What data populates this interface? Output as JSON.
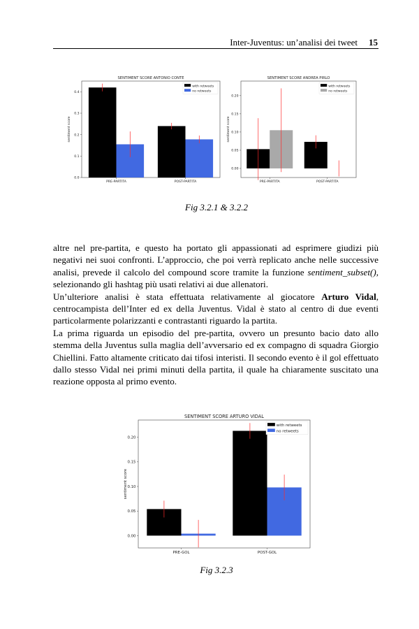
{
  "header": {
    "title": "Inter-Juventus: un’analisi dei tweet",
    "page_number": "15"
  },
  "captions": {
    "fig1": "Fig 3.2.1 & 3.2.2",
    "fig2": "Fig 3.2.3"
  },
  "paragraphs": [
    {
      "p1": "altre nel pre-partita, e questo ha portato gli appassionati ad esprimere giudizi più negativi nei suoi confronti. L’approccio, che poi verrà replicato anche nelle successive analisi, prevede il calcolo del compound score tramite la funzione ",
      "em": "sentiment_subset()",
      "p2": ", selezionando gli hashtag più usati relativi ai due allenatori."
    },
    {
      "p1": "Un’ulteriore analisi è stata effettuata relativamente al giocatore ",
      "strong": "Arturo Vidal",
      "p2": ", centrocampista dell’Inter ed ex della Juventus. Vidal è stato al centro di due eventi particolarmente polarizzanti e contrastanti riguardo la partita."
    },
    {
      "p1": "La prima riguarda un episodio del pre-partita, ovvero un presunto bacio dato allo stemma della Juventus sulla maglia dell’avversario ed ex compagno di squadra Giorgio Chiellini. Fatto altamente criticato dai tifosi interisti. Il secondo evento è il gol effettuato dallo stesso Vidal nei primi minuti della partita, il quale ha chiaramente suscitato una reazione opposta al primo evento."
    }
  ],
  "chart_data": [
    {
      "type": "bar",
      "title": "SENTIMENT SCORE ANTONIO CONTE",
      "ylabel": "sentiment score",
      "xlabel": "",
      "categories": [
        "PRE-PARTITA",
        "POST-PARTITA"
      ],
      "ylim": [
        0,
        0.45
      ],
      "yticks": [
        "0.0",
        "0.1",
        "0.2",
        "0.3",
        "0.4"
      ],
      "yticks_values": [
        0,
        0.1,
        0.2,
        0.3,
        0.4
      ],
      "legend_position": "top-right",
      "series": [
        {
          "name": "with retweets",
          "color": "#000000",
          "values": [
            0.42,
            0.24
          ],
          "errors": [
            0.018,
            0.015
          ]
        },
        {
          "name": "no retweets",
          "color": "#4169e1",
          "values": [
            0.155,
            0.178
          ],
          "errors": [
            0.06,
            0.018
          ]
        }
      ]
    },
    {
      "type": "bar",
      "title": "SENTIMENT SCORE ANDREA PIRLO",
      "ylabel": "sentiment score",
      "xlabel": "",
      "categories": [
        "PRE-PARTITA",
        "POST-PARTITA"
      ],
      "ylim": [
        -0.025,
        0.24
      ],
      "yticks": [
        "0.00",
        "0.05",
        "0.10",
        "0.15",
        "0.20"
      ],
      "yticks_values": [
        0,
        0.05,
        0.1,
        0.15,
        0.2
      ],
      "legend_position": "top-right",
      "series": [
        {
          "name": "with retweets",
          "color": "#000000",
          "values": [
            0.053,
            0.073
          ],
          "errors": [
            0.085,
            0.018
          ]
        },
        {
          "name": "no retweets",
          "color": "#a9a9a9",
          "values": [
            0.105,
            0.0
          ],
          "errors": [
            0.115,
            0.022
          ],
          "error_centers": [
            0.105,
            0.0
          ]
        }
      ]
    },
    {
      "type": "bar",
      "title": "SENTIMENT SCORE ARTURO VIDAL",
      "ylabel": "sentiment score",
      "xlabel": "",
      "categories": [
        "PRE-GOL",
        "POST-GOL"
      ],
      "ylim": [
        -0.025,
        0.235
      ],
      "yticks": [
        "0.00",
        "0.05",
        "0.10",
        "0.15",
        "0.20"
      ],
      "yticks_values": [
        0,
        0.05,
        0.1,
        0.15,
        0.2
      ],
      "legend_position": "top-right",
      "series": [
        {
          "name": "with retweets",
          "color": "#000000",
          "values": [
            0.054,
            0.213
          ],
          "errors": [
            0.017,
            0.016
          ]
        },
        {
          "name": "no retweets",
          "color": "#4169e1",
          "values": [
            0.004,
            0.098
          ],
          "errors": [
            0.028,
            0.026
          ]
        }
      ]
    }
  ]
}
